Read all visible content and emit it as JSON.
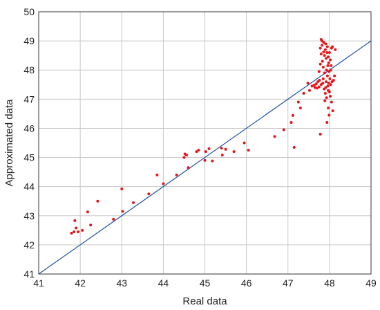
{
  "chart_data": {
    "type": "scatter",
    "title": "",
    "xlabel": "Real data",
    "ylabel": "Approximated data",
    "xlim": [
      41,
      49
    ],
    "ylim": [
      41,
      50
    ],
    "xticks": [
      "41",
      "42",
      "43",
      "44",
      "45",
      "46",
      "47",
      "48",
      "49"
    ],
    "yticks": [
      "41",
      "42",
      "43",
      "44",
      "45",
      "46",
      "47",
      "48",
      "49",
      "50"
    ],
    "grid": true,
    "colors": {
      "points": "#e8141a",
      "line": "#1f4fa0",
      "grid": "#c8c8c8"
    },
    "reference_line": {
      "x": [
        41,
        49
      ],
      "y": [
        41,
        49
      ]
    },
    "points": [
      [
        41.79,
        42.4
      ],
      [
        41.85,
        42.45
      ],
      [
        41.87,
        42.83
      ],
      [
        41.9,
        42.58
      ],
      [
        41.95,
        42.45
      ],
      [
        42.05,
        42.5
      ],
      [
        42.18,
        43.13
      ],
      [
        42.25,
        42.68
      ],
      [
        42.42,
        43.5
      ],
      [
        42.8,
        42.88
      ],
      [
        43.0,
        43.92
      ],
      [
        43.02,
        43.15
      ],
      [
        43.28,
        43.45
      ],
      [
        43.65,
        43.75
      ],
      [
        43.85,
        44.4
      ],
      [
        44.0,
        44.1
      ],
      [
        44.32,
        44.4
      ],
      [
        44.5,
        45.0
      ],
      [
        44.52,
        45.12
      ],
      [
        44.56,
        45.08
      ],
      [
        44.6,
        44.65
      ],
      [
        44.8,
        45.2
      ],
      [
        44.85,
        45.25
      ],
      [
        45.0,
        44.9
      ],
      [
        45.02,
        45.2
      ],
      [
        45.1,
        45.3
      ],
      [
        45.18,
        44.88
      ],
      [
        45.4,
        45.32
      ],
      [
        45.42,
        45.08
      ],
      [
        45.5,
        45.28
      ],
      [
        45.7,
        45.2
      ],
      [
        45.95,
        45.5
      ],
      [
        46.05,
        45.25
      ],
      [
        46.68,
        45.72
      ],
      [
        46.9,
        45.95
      ],
      [
        47.08,
        46.2
      ],
      [
        47.12,
        46.44
      ],
      [
        47.15,
        45.35
      ],
      [
        47.25,
        46.9
      ],
      [
        47.3,
        46.7
      ],
      [
        47.38,
        47.2
      ],
      [
        47.48,
        47.55
      ],
      [
        47.52,
        47.3
      ],
      [
        47.58,
        47.45
      ],
      [
        47.63,
        47.48
      ],
      [
        47.65,
        47.4
      ],
      [
        47.68,
        47.52
      ],
      [
        47.7,
        47.38
      ],
      [
        47.72,
        47.6
      ],
      [
        47.75,
        47.42
      ],
      [
        47.75,
        47.95
      ],
      [
        47.78,
        48.2
      ],
      [
        47.78,
        48.75
      ],
      [
        47.78,
        45.8
      ],
      [
        47.8,
        49.05
      ],
      [
        47.8,
        48.55
      ],
      [
        47.8,
        47.5
      ],
      [
        47.82,
        48.85
      ],
      [
        47.82,
        49.0
      ],
      [
        47.83,
        48.3
      ],
      [
        47.85,
        47.7
      ],
      [
        47.85,
        48.1
      ],
      [
        47.86,
        48.95
      ],
      [
        47.87,
        47.35
      ],
      [
        47.88,
        48.5
      ],
      [
        47.88,
        47.9
      ],
      [
        47.89,
        46.95
      ],
      [
        47.9,
        48.7
      ],
      [
        47.9,
        47.2
      ],
      [
        47.91,
        48.9
      ],
      [
        47.92,
        48.4
      ],
      [
        47.92,
        47.6
      ],
      [
        47.93,
        48.0
      ],
      [
        47.93,
        47.05
      ],
      [
        47.94,
        48.6
      ],
      [
        47.94,
        46.2
      ],
      [
        47.95,
        47.8
      ],
      [
        47.95,
        48.8
      ],
      [
        47.96,
        48.15
      ],
      [
        47.96,
        47.45
      ],
      [
        47.97,
        48.45
      ],
      [
        47.97,
        46.7
      ],
      [
        47.98,
        47.55
      ],
      [
        47.98,
        48.25
      ],
      [
        47.99,
        47.95
      ],
      [
        47.99,
        46.45
      ],
      [
        48.0,
        48.6
      ],
      [
        48.0,
        47.25
      ],
      [
        48.01,
        47.7
      ],
      [
        48.02,
        48.35
      ],
      [
        48.02,
        47.1
      ],
      [
        48.03,
        47.5
      ],
      [
        48.04,
        48.15
      ],
      [
        48.05,
        48.75
      ],
      [
        48.05,
        46.9
      ],
      [
        48.06,
        47.6
      ],
      [
        48.07,
        48.8
      ],
      [
        48.08,
        46.6
      ],
      [
        48.1,
        47.65
      ],
      [
        48.12,
        47.8
      ],
      [
        48.14,
        48.7
      ],
      [
        47.84,
        47.55
      ],
      [
        47.76,
        47.65
      ],
      [
        47.86,
        48.62
      ],
      [
        47.97,
        47.3
      ],
      [
        48.03,
        48.0
      ],
      [
        47.91,
        47.4
      ]
    ]
  }
}
